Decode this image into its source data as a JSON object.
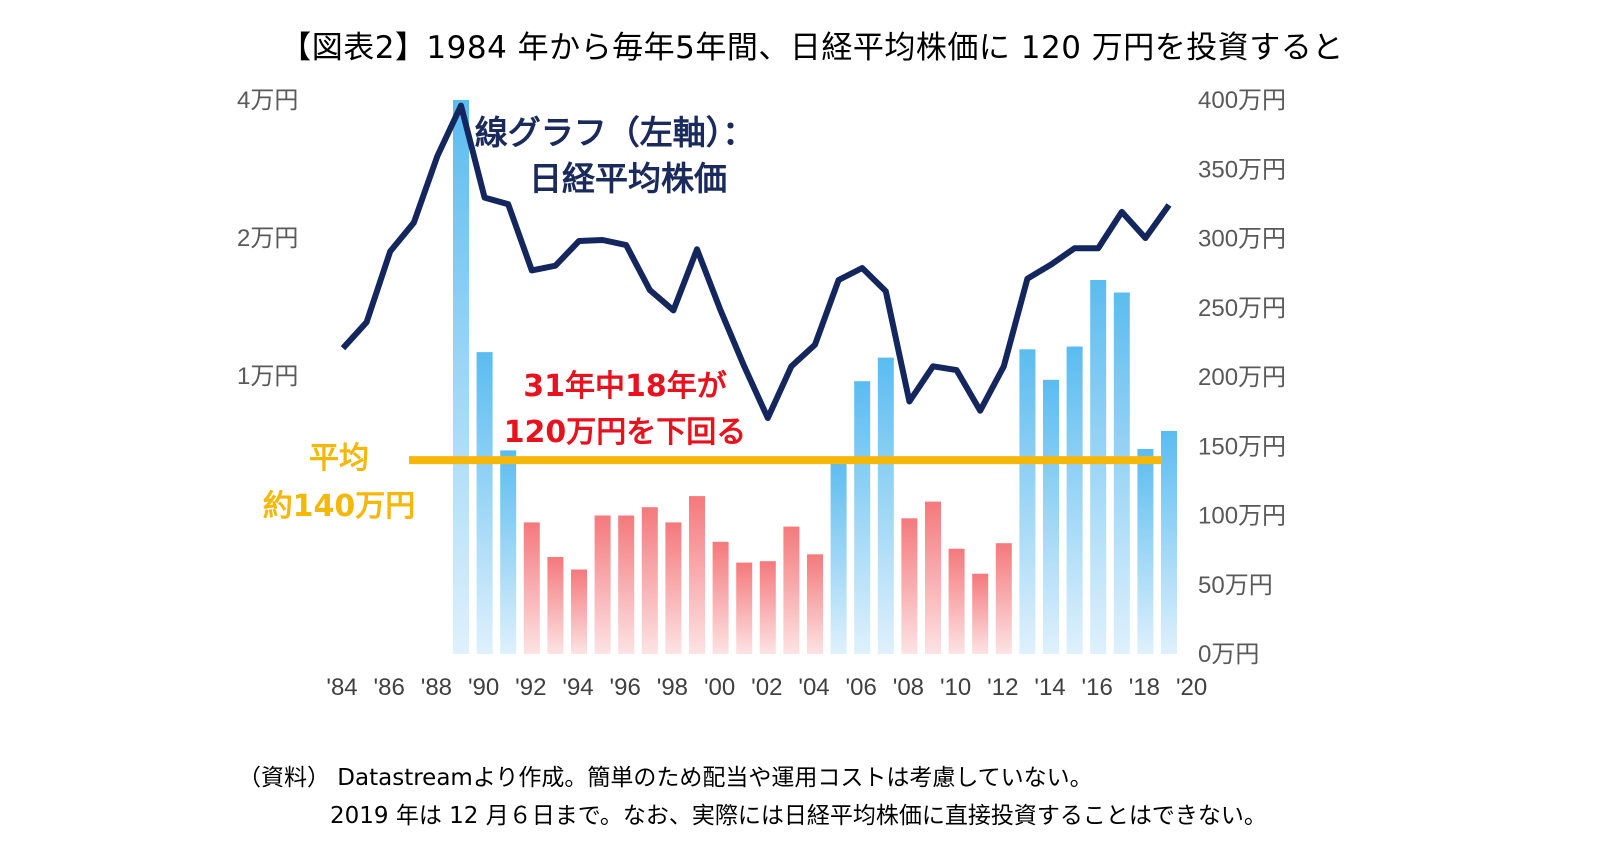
{
  "title": "【図表2】1984 年から毎年5年間、日経平均株価に 120 万円を投資すると",
  "chart_data": {
    "type": "bar+line",
    "left_axis": {
      "ticks": [
        {
          "value": 10000,
          "label": "1万円"
        },
        {
          "value": 20000,
          "label": "2万円"
        },
        {
          "value": 40000,
          "label": "4万円"
        }
      ],
      "scale": "log",
      "ylim": [
        5000,
        40000
      ]
    },
    "right_axis": {
      "ticks": [
        "0万円",
        "50万円",
        "100万円",
        "150万円",
        "200万円",
        "250万円",
        "300万円",
        "350万円",
        "400万円"
      ],
      "ylim": [
        0,
        400
      ]
    },
    "x_tick_labels": [
      "'84",
      "'86",
      "'88",
      "'90",
      "'92",
      "'94",
      "'96",
      "'98",
      "'00",
      "'02",
      "'04",
      "'06",
      "'08",
      "'10",
      "'12",
      "'14",
      "'16",
      "'18",
      "'20"
    ],
    "bars": {
      "years": [
        1989,
        1990,
        1991,
        1992,
        1993,
        1994,
        1995,
        1996,
        1997,
        1998,
        1999,
        2000,
        2001,
        2002,
        2003,
        2004,
        2005,
        2006,
        2007,
        2008,
        2009,
        2010,
        2011,
        2012,
        2013,
        2014,
        2015,
        2016,
        2017,
        2018,
        2019
      ],
      "values": [
        400,
        218,
        147,
        95,
        70,
        61,
        100,
        100,
        106,
        95,
        114,
        81,
        66,
        67,
        92,
        72,
        140,
        197,
        214,
        98,
        110,
        76,
        58,
        80,
        220,
        198,
        222,
        270,
        261,
        148,
        161
      ],
      "color_above_avg": "#5bbcf0",
      "color_below_avg": "#f4797c"
    },
    "line": {
      "name": "日経平均株価",
      "years": [
        1984,
        1985,
        1986,
        1987,
        1988,
        1989,
        1990,
        1991,
        1992,
        1993,
        1994,
        1995,
        1996,
        1997,
        1998,
        1999,
        2000,
        2001,
        2002,
        2003,
        2004,
        2005,
        2006,
        2007,
        2008,
        2009,
        2010,
        2011,
        2012,
        2013,
        2014,
        2015,
        2016,
        2017,
        2018,
        2019
      ],
      "values": [
        11500,
        13100,
        18700,
        21600,
        30200,
        38900,
        24500,
        23700,
        17000,
        17400,
        19700,
        19800,
        19300,
        15400,
        13900,
        18900,
        13900,
        10500,
        8100,
        10500,
        11700,
        16200,
        17200,
        15300,
        8800,
        10500,
        10300,
        8400,
        10500,
        16300,
        17500,
        19000,
        19000,
        22800,
        20000,
        23600
      ],
      "color": "#14265e"
    },
    "average_line": {
      "value": 140,
      "color": "#f5b80a"
    },
    "annotations": {
      "line_label_1": "線グラフ（左軸）：",
      "line_label_2": "日経平均株価",
      "below_label_1": "31年中18年が",
      "below_label_2": "120万円を下回る",
      "avg_label_1": "平均",
      "avg_label_2": "約140万円"
    }
  },
  "source_note_1": "（資料） Datastreamより作成。簡単のため配当や運用コストは考慮していない。",
  "source_note_2": "2019 年は 12 月６日まで。なお、実際には日経平均株価に直接投資することはできない。"
}
